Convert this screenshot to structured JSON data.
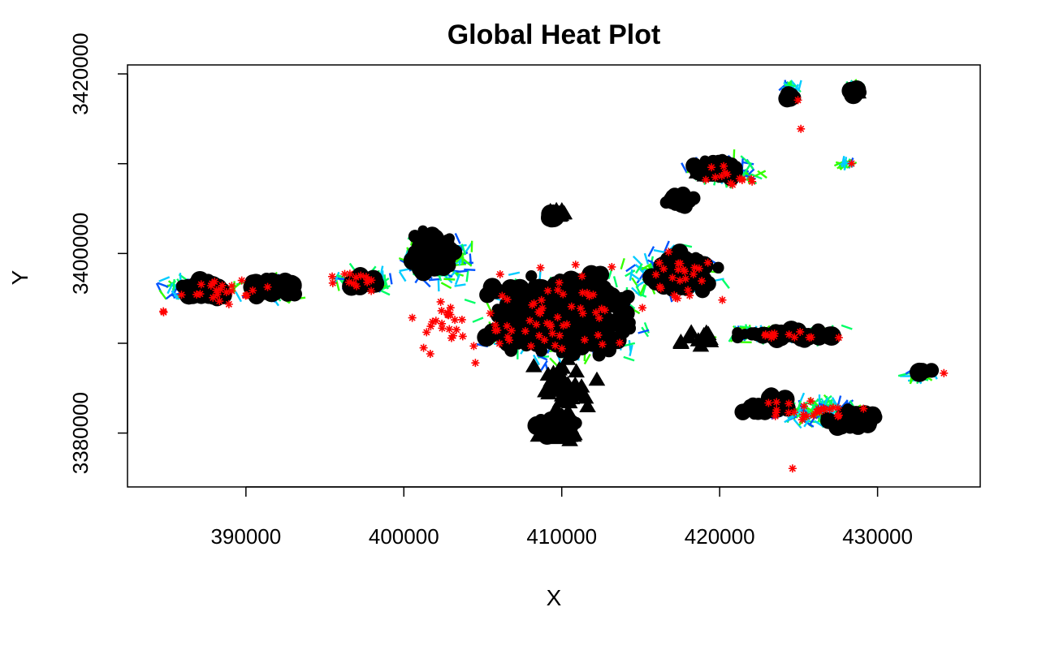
{
  "chart_data": {
    "type": "scatter",
    "title": "Global Heat Plot",
    "xlabel": "X",
    "ylabel": "Y",
    "xlim": [
      382500,
      436500
    ],
    "ylim": [
      3374000,
      3421000
    ],
    "x_ticks": [
      390000,
      400000,
      410000,
      420000,
      430000
    ],
    "x_tick_labels": [
      "390000",
      "400000",
      "410000",
      "420000",
      "430000"
    ],
    "y_ticks": [
      3380000,
      3400000,
      3420000
    ],
    "y_tick_labels": [
      "3380000",
      "3400000",
      "3420000"
    ],
    "y_minor_ticks": [
      3390000,
      3410000
    ],
    "grid": false,
    "legend": "none",
    "series": [
      {
        "marker": "dot",
        "colors": [
          "#00ff66",
          "#00ccff",
          "#0055ff",
          "#33ff00"
        ],
        "clusters": [
          {
            "x": 386500,
            "y": 3396000,
            "rx": 2600,
            "ry": 1800,
            "n": 90
          },
          {
            "x": 391500,
            "y": 3396000,
            "rx": 2500,
            "ry": 1800,
            "n": 90
          },
          {
            "x": 397500,
            "y": 3397000,
            "rx": 2500,
            "ry": 1800,
            "n": 80
          },
          {
            "x": 402000,
            "y": 3399000,
            "rx": 3200,
            "ry": 3500,
            "n": 140
          },
          {
            "x": 410000,
            "y": 3393000,
            "rx": 6500,
            "ry": 6500,
            "n": 320
          },
          {
            "x": 417000,
            "y": 3398000,
            "rx": 4000,
            "ry": 3500,
            "n": 140
          },
          {
            "x": 420500,
            "y": 3409000,
            "rx": 3000,
            "ry": 2200,
            "n": 90
          },
          {
            "x": 423500,
            "y": 3391000,
            "rx": 5500,
            "ry": 1200,
            "n": 90
          },
          {
            "x": 426500,
            "y": 3382500,
            "rx": 4000,
            "ry": 2200,
            "n": 110
          },
          {
            "x": 432500,
            "y": 3386500,
            "rx": 1600,
            "ry": 900,
            "n": 30
          },
          {
            "x": 424500,
            "y": 3418500,
            "rx": 700,
            "ry": 600,
            "n": 20
          },
          {
            "x": 428500,
            "y": 3418500,
            "rx": 800,
            "ry": 600,
            "n": 20
          },
          {
            "x": 428000,
            "y": 3410000,
            "rx": 700,
            "ry": 500,
            "n": 15
          }
        ]
      },
      {
        "marker": "black-blob",
        "color": "#000000",
        "clusters": [
          {
            "x": 387500,
            "y": 3396000,
            "rx": 2000,
            "ry": 1300,
            "n": 70
          },
          {
            "x": 391500,
            "y": 3396200,
            "rx": 1800,
            "ry": 1200,
            "n": 60
          },
          {
            "x": 397500,
            "y": 3396800,
            "rx": 1500,
            "ry": 1200,
            "n": 40
          },
          {
            "x": 401800,
            "y": 3400000,
            "rx": 2200,
            "ry": 3000,
            "n": 90
          },
          {
            "x": 410000,
            "y": 3393000,
            "rx": 5600,
            "ry": 5600,
            "n": 420
          },
          {
            "x": 409700,
            "y": 3380800,
            "rx": 2000,
            "ry": 1400,
            "n": 60
          },
          {
            "x": 409500,
            "y": 3404200,
            "rx": 900,
            "ry": 700,
            "n": 20
          },
          {
            "x": 417500,
            "y": 3398000,
            "rx": 2500,
            "ry": 3000,
            "n": 90
          },
          {
            "x": 420000,
            "y": 3409500,
            "rx": 2200,
            "ry": 1400,
            "n": 60
          },
          {
            "x": 417500,
            "y": 3406000,
            "rx": 1400,
            "ry": 1000,
            "n": 25
          },
          {
            "x": 424000,
            "y": 3391000,
            "rx": 4000,
            "ry": 800,
            "n": 50
          },
          {
            "x": 423000,
            "y": 3383000,
            "rx": 1800,
            "ry": 1500,
            "n": 45
          },
          {
            "x": 428500,
            "y": 3381500,
            "rx": 2200,
            "ry": 1400,
            "n": 55
          },
          {
            "x": 424500,
            "y": 3417500,
            "rx": 500,
            "ry": 500,
            "n": 8
          },
          {
            "x": 428600,
            "y": 3418000,
            "rx": 400,
            "ry": 500,
            "n": 8
          },
          {
            "x": 433000,
            "y": 3387000,
            "rx": 700,
            "ry": 400,
            "n": 8
          }
        ]
      },
      {
        "marker": "triangle",
        "color": "#000000",
        "clusters": [
          {
            "x": 410000,
            "y": 3385000,
            "rx": 2500,
            "ry": 4000,
            "n": 45
          },
          {
            "x": 409800,
            "y": 3380000,
            "rx": 1800,
            "ry": 1200,
            "n": 30
          },
          {
            "x": 409700,
            "y": 3404500,
            "rx": 700,
            "ry": 600,
            "n": 10
          },
          {
            "x": 418500,
            "y": 3390500,
            "rx": 1500,
            "ry": 1500,
            "n": 15
          },
          {
            "x": 419500,
            "y": 3409000,
            "rx": 1200,
            "ry": 800,
            "n": 8
          },
          {
            "x": 428700,
            "y": 3418000,
            "rx": 300,
            "ry": 300,
            "n": 3
          }
        ]
      },
      {
        "marker": "asterisk",
        "color": "#ff0000",
        "clusters": [
          {
            "x": 388500,
            "y": 3396000,
            "rx": 3500,
            "ry": 2000,
            "n": 22
          },
          {
            "x": 396500,
            "y": 3397000,
            "rx": 2500,
            "ry": 2000,
            "n": 14
          },
          {
            "x": 402500,
            "y": 3392000,
            "rx": 2500,
            "ry": 7000,
            "n": 25
          },
          {
            "x": 410000,
            "y": 3393000,
            "rx": 7000,
            "ry": 7000,
            "n": 60
          },
          {
            "x": 418000,
            "y": 3397000,
            "rx": 3500,
            "ry": 4500,
            "n": 25
          },
          {
            "x": 420500,
            "y": 3408500,
            "rx": 3000,
            "ry": 2000,
            "n": 14
          },
          {
            "x": 425000,
            "y": 3390800,
            "rx": 5000,
            "ry": 600,
            "n": 12
          },
          {
            "x": 425500,
            "y": 3382500,
            "rx": 4500,
            "ry": 2000,
            "n": 25
          },
          {
            "x": 434200,
            "y": 3386700,
            "rx": 200,
            "ry": 200,
            "n": 1
          },
          {
            "x": 424800,
            "y": 3417200,
            "rx": 300,
            "ry": 300,
            "n": 1
          },
          {
            "x": 425100,
            "y": 3413800,
            "rx": 200,
            "ry": 200,
            "n": 1
          },
          {
            "x": 428300,
            "y": 3410000,
            "rx": 200,
            "ry": 200,
            "n": 1
          },
          {
            "x": 424600,
            "y": 3376000,
            "rx": 200,
            "ry": 200,
            "n": 1
          },
          {
            "x": 384800,
            "y": 3393500,
            "rx": 300,
            "ry": 300,
            "n": 2
          }
        ]
      }
    ]
  }
}
